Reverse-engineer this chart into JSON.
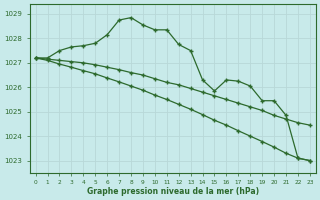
{
  "title": "Graphe pression niveau de la mer (hPa)",
  "background_color": "#c8eaea",
  "grid_color": "#b8d8d8",
  "line_color": "#2d6a2d",
  "xlim_min": -0.5,
  "xlim_max": 23.5,
  "ylim_min": 1022.5,
  "ylim_max": 1029.4,
  "yticks": [
    1023,
    1024,
    1025,
    1026,
    1027,
    1028,
    1029
  ],
  "xticks": [
    0,
    1,
    2,
    3,
    4,
    5,
    6,
    7,
    8,
    9,
    10,
    11,
    12,
    13,
    14,
    15,
    16,
    17,
    18,
    19,
    20,
    21,
    22,
    23
  ],
  "series1": [
    1027.2,
    1027.2,
    1027.5,
    1027.65,
    1027.7,
    1027.8,
    1028.15,
    1028.75,
    1028.85,
    1028.55,
    1028.35,
    1028.35,
    1027.75,
    1027.5,
    1026.3,
    1025.85,
    1026.3,
    1026.25,
    1026.05,
    1025.45,
    1025.45,
    1024.85,
    1023.1,
    1023.0
  ],
  "series2": [
    1027.2,
    1027.15,
    1027.1,
    1027.05,
    1027.0,
    1026.92,
    1026.82,
    1026.72,
    1026.6,
    1026.5,
    1026.35,
    1026.2,
    1026.1,
    1025.95,
    1025.8,
    1025.65,
    1025.5,
    1025.35,
    1025.2,
    1025.05,
    1024.85,
    1024.7,
    1024.55,
    1024.45
  ],
  "series3": [
    1027.2,
    1027.1,
    1026.95,
    1026.82,
    1026.68,
    1026.55,
    1026.38,
    1026.22,
    1026.05,
    1025.88,
    1025.68,
    1025.5,
    1025.3,
    1025.1,
    1024.88,
    1024.65,
    1024.45,
    1024.22,
    1024.0,
    1023.78,
    1023.55,
    1023.3,
    1023.1,
    1023.0
  ]
}
